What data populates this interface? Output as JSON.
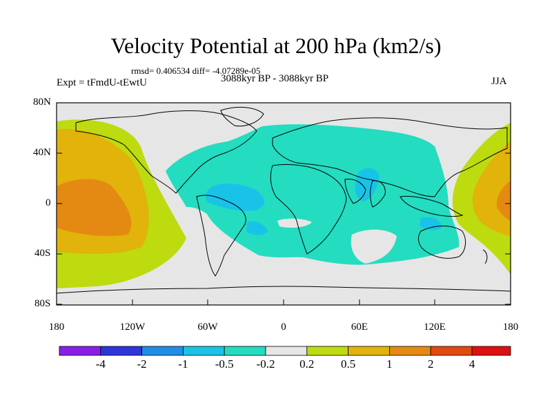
{
  "title": "Velocity Potential at 200 hPa (km2/s)",
  "stats": "rmsd= 0.406534 diff= -4.07289e-05",
  "experiment": "Expt = tFmdU-tEwtU",
  "period": "3088kyr BP - 3088kyr BP",
  "season": "JJA",
  "lat_labels": [
    "80N",
    "40N",
    "0",
    "40S",
    "80S"
  ],
  "lon_labels": [
    "180",
    "120W",
    "60W",
    "0",
    "60E",
    "120E",
    "180"
  ],
  "colorbar": {
    "labels": [
      "-4",
      "-2",
      "-1",
      "-0.5",
      "-0.2",
      "0.2",
      "0.5",
      "1",
      "2",
      "4"
    ],
    "colors": [
      "#8a1ee6",
      "#2e35d9",
      "#1e8ee6",
      "#19c3e8",
      "#24dcc0",
      "#e6e6e6",
      "#bddb0f",
      "#e2b30a",
      "#e48a12",
      "#e24a0f",
      "#e01010"
    ]
  },
  "colors": {
    "land_bg": "#e6e6e6",
    "teal": "#24dcc0",
    "cyan": "#19c3e8",
    "blue": "#1e8ee6",
    "lime": "#bddb0f",
    "gold": "#e2b30a",
    "orange": "#e48a12"
  }
}
